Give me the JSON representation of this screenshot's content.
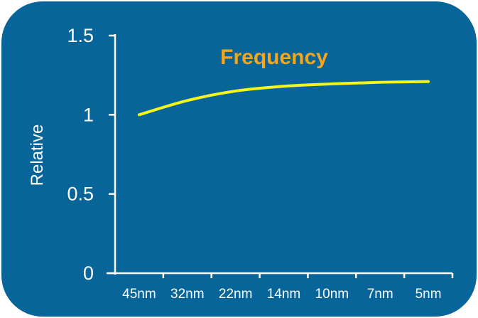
{
  "chart_data": {
    "type": "line",
    "title": "Frequency",
    "xlabel": "",
    "ylabel": "Relative",
    "categories": [
      "45nm",
      "32nm",
      "22nm",
      "14nm",
      "10nm",
      "7nm",
      "5nm"
    ],
    "yticks": [
      "0",
      "0.5",
      "1",
      "1.5"
    ],
    "ylim": [
      0,
      1.5
    ],
    "series": [
      {
        "values": [
          1.0,
          1.09,
          1.15,
          1.18,
          1.195,
          1.205,
          1.21
        ]
      }
    ],
    "grid": false,
    "legend": "none",
    "colors": {
      "background": "#07659a",
      "line": "#f5f51a",
      "title": "#f4a51c",
      "axis": "#ffffff",
      "text": "#ffffff"
    }
  }
}
